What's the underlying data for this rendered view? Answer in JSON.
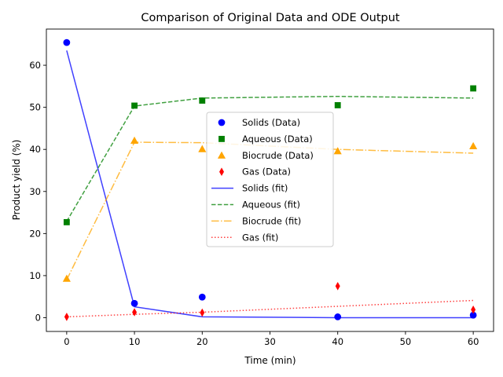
{
  "chart_data": {
    "type": "line",
    "title": "Comparison of Original Data and ODE Output",
    "xlabel": "Time (min)",
    "ylabel": "Product yield (%)",
    "xlim": [
      -3.0,
      63.0
    ],
    "ylim": [
      -3.27,
      68.6
    ],
    "xticks": [
      0,
      10,
      20,
      30,
      40,
      50,
      60
    ],
    "yticks": [
      0,
      10,
      20,
      30,
      40,
      50,
      60
    ],
    "grid": false,
    "legend_position": "center",
    "data_series": [
      {
        "name": "Solids (Data)",
        "marker": "circle",
        "color": "#0000ff",
        "x": [
          0,
          10,
          20,
          40,
          60
        ],
        "y": [
          65.4,
          3.4,
          4.9,
          0.2,
          0.6
        ]
      },
      {
        "name": "Aqueous (Data)",
        "marker": "square",
        "color": "#008000",
        "x": [
          0,
          10,
          20,
          40,
          60
        ],
        "y": [
          22.7,
          50.4,
          51.6,
          50.5,
          54.5
        ]
      },
      {
        "name": "Biocrude (Data)",
        "marker": "triangle",
        "color": "#ffa500",
        "x": [
          0,
          10,
          20,
          40,
          60
        ],
        "y": [
          9.3,
          42.1,
          40.1,
          39.6,
          40.8
        ]
      },
      {
        "name": "Gas (Data)",
        "marker": "diamond",
        "color": "#ff0000",
        "x": [
          0,
          10,
          20,
          40,
          60
        ],
        "y": [
          0.2,
          1.3,
          1.2,
          7.5,
          1.9
        ]
      }
    ],
    "fit_series": [
      {
        "name": "Solids (fit)",
        "dash": "solid",
        "color": "#0000ff",
        "x": [
          0,
          10,
          20,
          40,
          60
        ],
        "y": [
          63.5,
          2.6,
          0.2,
          0.0,
          0.0
        ]
      },
      {
        "name": "Aqueous (fit)",
        "dash": "dashed",
        "color": "#008000",
        "x": [
          0,
          10,
          20,
          40,
          60
        ],
        "y": [
          22.9,
          50.3,
          52.2,
          52.6,
          52.2
        ]
      },
      {
        "name": "Biocrude (fit)",
        "dash": "dashdot",
        "color": "#ffa500",
        "x": [
          0,
          10,
          20,
          40,
          60
        ],
        "y": [
          9.0,
          41.7,
          41.6,
          40.0,
          39.1
        ]
      },
      {
        "name": "Gas (fit)",
        "dash": "dotted",
        "color": "#ff0000",
        "x": [
          0,
          10,
          20,
          40,
          60
        ],
        "y": [
          0.2,
          0.8,
          1.3,
          2.7,
          4.1
        ]
      }
    ]
  }
}
